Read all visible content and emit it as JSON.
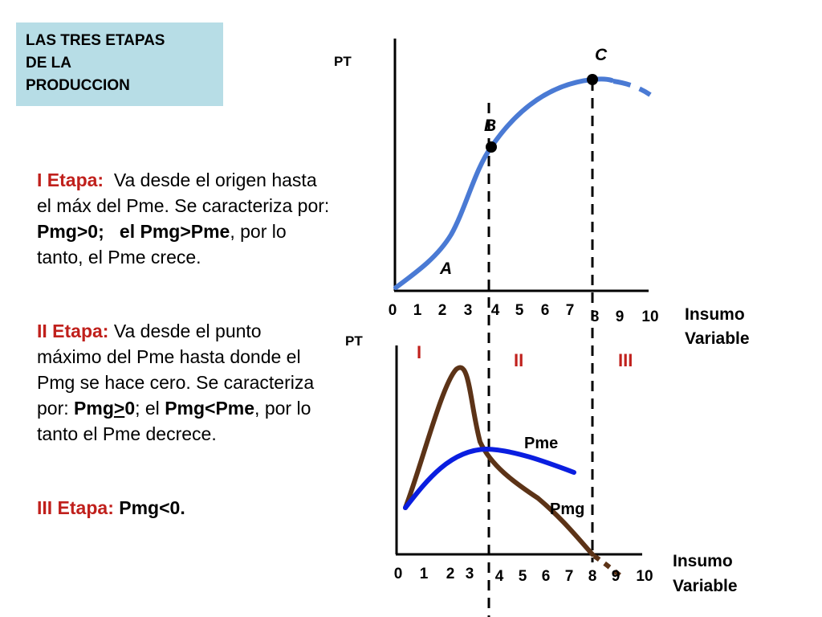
{
  "title": {
    "line1": "LAS TRES ETAPAS",
    "line2": "DE LA",
    "line3": "PRODUCCION"
  },
  "stage1": {
    "label": "I Etapa:",
    "t1": "Va desde el origen hasta el máx del Pme. Se caracteriza por: ",
    "b1": "Pmg>0;",
    "t2": "el ",
    "b2": "Pmg>Pme",
    "t3": ", por lo tanto, el Pme crece."
  },
  "stage2": {
    "label": "II Etapa:",
    "t1": "Va desde el punto máximo del Pme hasta donde el Pmg se hace cero. Se caracteriza por: ",
    "b1a": "Pmg",
    "b1u": ">",
    "b1b": "0",
    "t2": "; el ",
    "b2": "Pmg<Pme",
    "t3": ", por lo tanto el Pme decrece."
  },
  "stage3": {
    "label": "III Etapa:",
    "b1": "Pmg<0."
  },
  "top_chart": {
    "ylabel": "PT",
    "xlabel_line1": "Insumo",
    "xlabel_line2": "Variable",
    "xticks": [
      "0",
      "1",
      "2",
      "3",
      "4",
      "5",
      "6",
      "7",
      "8",
      "9",
      "10"
    ],
    "points": {
      "a": "A",
      "b": "B",
      "c": "C"
    }
  },
  "bottom_chart": {
    "ylabel": "PT",
    "xlabel_line1": "Insumo",
    "xlabel_line2": "Variable",
    "xticks": [
      "0",
      "1",
      "2",
      "3",
      "4",
      "5",
      "6",
      "7",
      "8",
      "9",
      "10"
    ],
    "stages": {
      "i": "I",
      "ii": "II",
      "iii": "III"
    },
    "curve_labels": {
      "pme": "Pme",
      "pmg": "Pmg"
    }
  },
  "colors": {
    "pt_curve": "#4a7ad4",
    "pme_curve": "#0a1ee0",
    "pmg_curve": "#5c3317",
    "stage_label": "#c0201c",
    "title_bg": "#b7dde6"
  }
}
